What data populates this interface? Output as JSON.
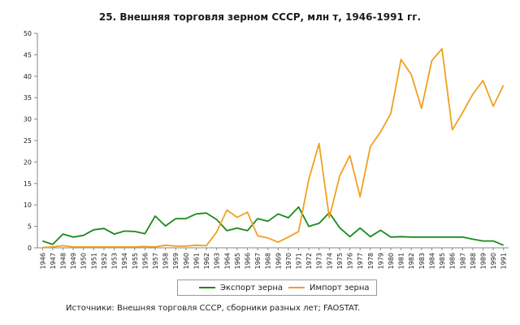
{
  "chart_data": {
    "type": "line",
    "title": "25. Внешняя торговля зерном СССР, млн т, 1946-1991 гг.",
    "x": [
      "1946",
      "1947",
      "1948",
      "1949",
      "1950",
      "1951",
      "1952",
      "1953",
      "1954",
      "1955",
      "1956",
      "1957",
      "1958",
      "1959",
      "1960",
      "1961",
      "1962",
      "1963",
      "1964",
      "1965",
      "1966",
      "1967",
      "1968",
      "1969",
      "1970",
      "1971",
      "1972",
      "1973",
      "1974",
      "1975",
      "1976",
      "1977",
      "1978",
      "1979",
      "1980",
      "1981",
      "1982",
      "1983",
      "1984",
      "1985",
      "1986",
      "1987",
      "1988",
      "1989",
      "1990",
      "1991"
    ],
    "ylim": [
      0,
      50
    ],
    "yticks": [
      "0",
      "5",
      "10",
      "15",
      "20",
      "25",
      "30",
      "35",
      "40",
      "45",
      "50"
    ],
    "series": [
      {
        "name": "Экспорт зерна",
        "color": "#1a8a1a",
        "values": [
          1.6,
          0.8,
          3.2,
          2.5,
          2.9,
          4.2,
          4.5,
          3.2,
          3.9,
          3.8,
          3.3,
          7.4,
          5.1,
          6.8,
          6.8,
          7.9,
          8.1,
          6.6,
          4.0,
          4.6,
          4.0,
          6.8,
          6.2,
          7.9,
          7.0,
          9.5,
          5.0,
          5.7,
          8.2,
          4.7,
          2.6,
          4.6,
          2.6,
          4.1,
          2.5,
          2.6,
          2.5,
          2.5,
          2.5,
          2.5,
          2.5,
          2.5,
          2.0,
          1.6,
          1.6,
          0.6
        ]
      },
      {
        "name": "Импорт зерна",
        "color": "#f0a020",
        "values": [
          0.1,
          0.2,
          0.5,
          0.2,
          0.2,
          0.2,
          0.2,
          0.2,
          0.2,
          0.2,
          0.3,
          0.2,
          0.6,
          0.4,
          0.4,
          0.6,
          0.5,
          3.7,
          8.8,
          7.1,
          8.3,
          2.8,
          2.3,
          1.3,
          2.5,
          3.8,
          16.0,
          24.3,
          7.0,
          16.7,
          21.5,
          11.9,
          23.6,
          27.0,
          31.3,
          43.9,
          40.4,
          32.5,
          43.6,
          46.4,
          27.5,
          31.5,
          35.8,
          39.0,
          33.0,
          37.9
        ]
      }
    ],
    "legend": "bottom",
    "grid": false
  },
  "source_note": "Источники: Внешняя торговля СССР, сборники разных лет; FAOSTAT."
}
